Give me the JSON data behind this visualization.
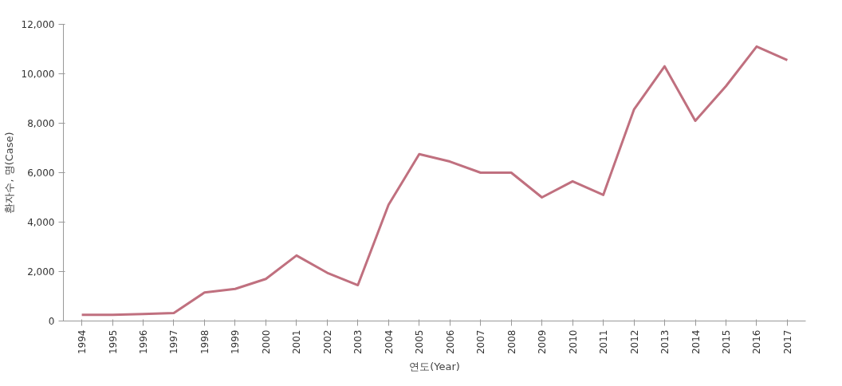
{
  "chart_data": {
    "type": "line",
    "xlabel": "연도(Year)",
    "ylabel": "환자수, 명(Case)",
    "categories": [
      "1994",
      "1995",
      "1996",
      "1997",
      "1998",
      "1999",
      "2000",
      "2001",
      "2002",
      "2003",
      "2004",
      "2005",
      "2006",
      "2007",
      "2008",
      "2009",
      "2010",
      "2011",
      "2012",
      "2013",
      "2014",
      "2015",
      "2016",
      "2017"
    ],
    "series": [
      {
        "color": "#c0707f",
        "values": [
          250,
          250,
          280,
          320,
          1150,
          1300,
          1700,
          2650,
          1950,
          1450,
          4700,
          6750,
          6450,
          6000,
          6000,
          5000,
          5650,
          5100,
          8550,
          10300,
          8100,
          9500,
          11100,
          10550
        ]
      }
    ],
    "ylim": [
      0,
      12000
    ],
    "yticks": [
      0,
      {
        "value": 2000,
        "label": "2,000"
      },
      {
        "value": 4000,
        "label": "4,000"
      },
      {
        "value": 6000,
        "label": "6,000"
      },
      {
        "value": 8000,
        "label": "8,000"
      },
      {
        "value": 10000,
        "label": "10,000"
      },
      {
        "value": 12000,
        "label": "12,000"
      }
    ],
    "grid": false,
    "marker": "none",
    "line_style": "solid"
  }
}
